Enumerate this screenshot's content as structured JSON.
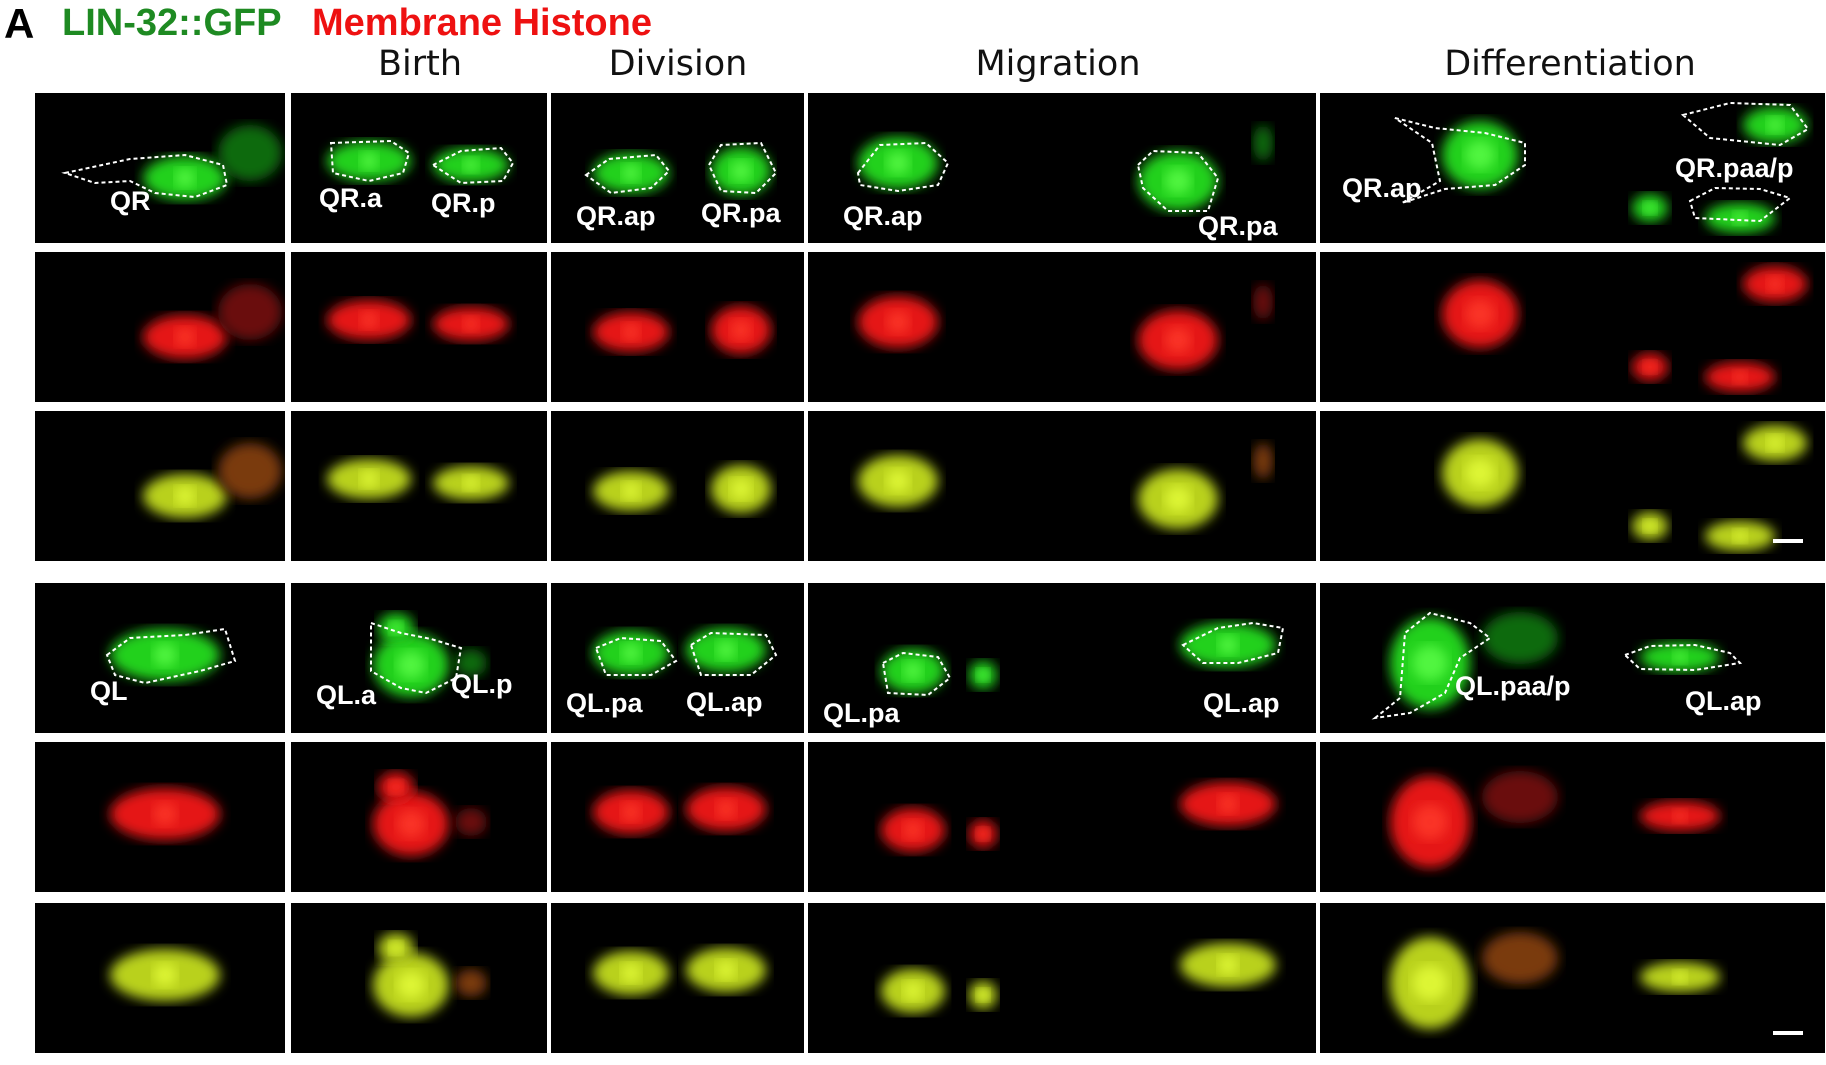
{
  "figure": {
    "panel_letter": "A",
    "title_green": "LIN-32::GFP",
    "title_red": "Membrane Histone",
    "columns": [
      "Birth",
      "Division",
      "Migration",
      "Differentiation"
    ],
    "labels": {
      "qr_row": {
        "c0": [
          "QR"
        ],
        "c1": [
          "QR.a",
          "QR.p"
        ],
        "c2": [
          "QR.ap",
          "QR.pa"
        ],
        "c3": [
          "QR.ap",
          "QR.pa"
        ],
        "c4": [
          "QR.ap",
          "QR.paa/p"
        ]
      },
      "ql_row": {
        "c0": [
          "QL"
        ],
        "c1": [
          "QL.a",
          "QL.p"
        ],
        "c2": [
          "QL.pa",
          "QL.ap"
        ],
        "c3": [
          "QL.pa",
          "QL.ap"
        ],
        "c4": [
          "QL.paa/p",
          "QL.ap"
        ]
      }
    },
    "channels": [
      "GFP",
      "membrane-histone",
      "merge"
    ],
    "colors": {
      "gfp": "#22d11f",
      "red": "#e51616",
      "merge": "#b9d11a",
      "title_green": "#1e8a22",
      "title_red": "#ee1111"
    }
  }
}
